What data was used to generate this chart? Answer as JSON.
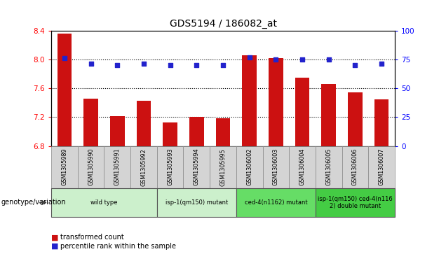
{
  "title": "GDS5194 / 186082_at",
  "samples": [
    "GSM1305989",
    "GSM1305990",
    "GSM1305991",
    "GSM1305992",
    "GSM1305993",
    "GSM1305994",
    "GSM1305995",
    "GSM1306002",
    "GSM1306003",
    "GSM1306004",
    "GSM1306005",
    "GSM1306006",
    "GSM1306007"
  ],
  "red_values": [
    8.36,
    7.46,
    7.21,
    7.43,
    7.13,
    7.2,
    7.18,
    8.06,
    8.02,
    7.75,
    7.66,
    7.54,
    7.45
  ],
  "blue_values": [
    76,
    71,
    70,
    71,
    70,
    70,
    70,
    77,
    75,
    75,
    75,
    70,
    71
  ],
  "ylim_left": [
    6.8,
    8.4
  ],
  "ylim_right": [
    0,
    100
  ],
  "yticks_left": [
    6.8,
    7.2,
    7.6,
    8.0,
    8.4
  ],
  "yticks_right": [
    0,
    25,
    50,
    75,
    100
  ],
  "hlines": [
    8.0,
    7.6,
    7.2
  ],
  "groups": [
    {
      "label": "wild type",
      "indices": [
        0,
        1,
        2,
        3
      ],
      "color": "#ccf0cc"
    },
    {
      "label": "isp-1(qm150) mutant",
      "indices": [
        4,
        5,
        6
      ],
      "color": "#ccf0cc"
    },
    {
      "label": "ced-4(n1162) mutant",
      "indices": [
        7,
        8,
        9
      ],
      "color": "#66dd66"
    },
    {
      "label": "isp-1(qm150) ced-4(n116\n2) double mutant",
      "indices": [
        10,
        11,
        12
      ],
      "color": "#44cc44"
    }
  ],
  "bar_color": "#cc1111",
  "dot_color": "#2222cc",
  "bar_width": 0.55,
  "baseline": 6.8,
  "legend_red": "transformed count",
  "legend_blue": "percentile rank within the sample",
  "genotype_label": "genotype/variation"
}
